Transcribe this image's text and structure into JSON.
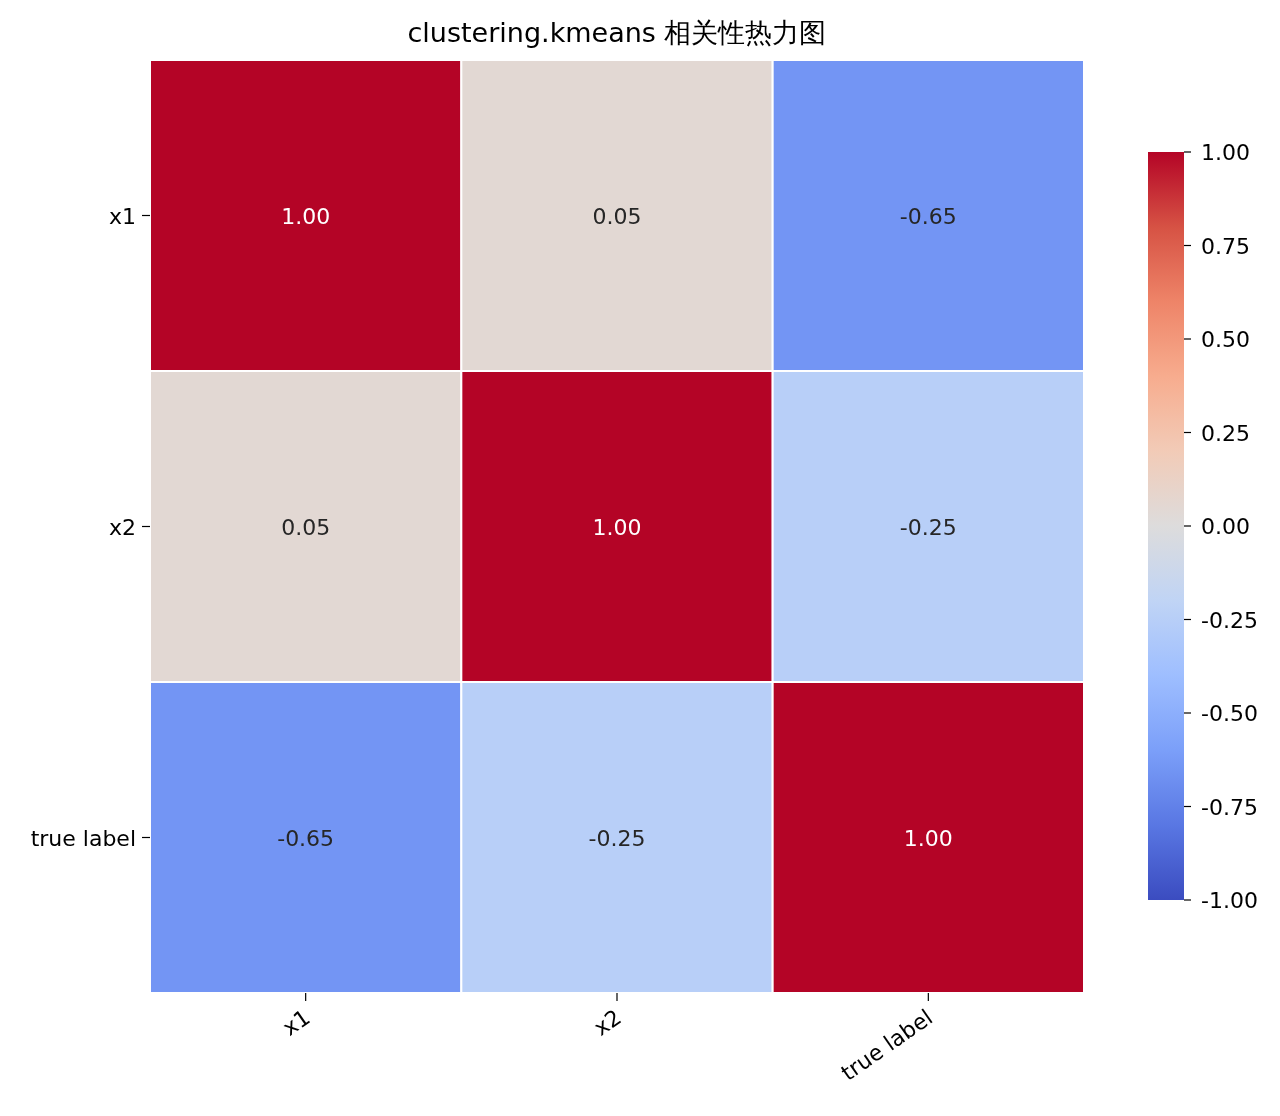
{
  "chart_data": {
    "type": "heatmap",
    "title": "clustering.kmeans 相关性热力图",
    "categories": [
      "x1",
      "x2",
      "true label"
    ],
    "y_categories": [
      "x1",
      "x2",
      "true label"
    ],
    "cells": [
      [
        1,
        0.05,
        -0.65
      ],
      [
        0.05,
        1,
        -0.25
      ],
      [
        -0.65,
        -0.25,
        1
      ]
    ],
    "cell_labels": [
      [
        "1.00",
        "0.05",
        "-0.65"
      ],
      [
        "0.05",
        "1.00",
        "-0.25"
      ],
      [
        "-0.65",
        "-0.25",
        "1.00"
      ]
    ],
    "clim": [
      -1,
      1
    ],
    "cticks": [
      {
        "value": -1,
        "label": "-1.00"
      },
      {
        "value": -0.75,
        "label": "-0.75"
      },
      {
        "value": -0.5,
        "label": "-0.50"
      },
      {
        "value": -0.25,
        "label": "-0.25"
      },
      {
        "value": 0,
        "label": "0.00"
      },
      {
        "value": 0.25,
        "label": "0.25"
      },
      {
        "value": 0.5,
        "label": "0.50"
      },
      {
        "value": 0.75,
        "label": "0.75"
      },
      {
        "value": 1,
        "label": "1.00"
      }
    ]
  }
}
